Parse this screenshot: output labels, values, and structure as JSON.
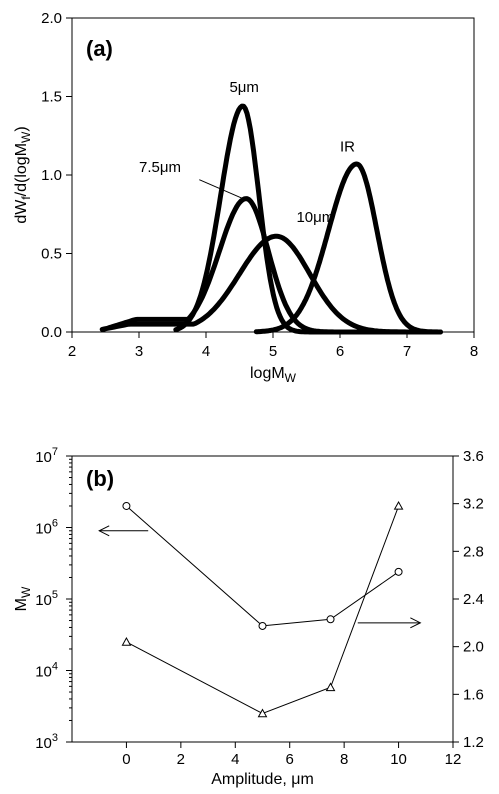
{
  "chart_data": [
    {
      "type": "line",
      "panel_label": "(a)",
      "xlabel": "logM",
      "xlabel_sub": "W",
      "ylabel": "dW",
      "ylabel_sub": "f",
      "ylabel_tail": "/d(logM",
      "ylabel_sub2": "W",
      "ylabel_close": ")",
      "xlim": [
        2,
        8
      ],
      "ylim": [
        0,
        2.0
      ],
      "xticks": [
        2,
        3,
        4,
        5,
        6,
        7,
        8
      ],
      "xtick_labels": [
        "2",
        "3",
        "4",
        "5",
        "6",
        "7",
        "8"
      ],
      "yticks": [
        0,
        0.5,
        1.0,
        1.5,
        2.0
      ],
      "ytick_labels": [
        "0.0",
        "0.5",
        "1.0",
        "1.5",
        "2.0"
      ],
      "series": [
        {
          "name": "5μm",
          "peak_x": 4.55,
          "peak_y": 1.44,
          "start_x": 3.55,
          "end_x": 7.5,
          "sl": 0.33,
          "sr": 0.24,
          "tail": 0.0
        },
        {
          "name": "7.5μm",
          "peak_x": 4.6,
          "peak_y": 0.85,
          "start_x": 2.55,
          "end_x": 7.4,
          "sl": 0.4,
          "sr": 0.33,
          "tail": 0.08
        },
        {
          "name": "10μm",
          "peak_x": 5.05,
          "peak_y": 0.61,
          "start_x": 2.45,
          "end_x": 7.3,
          "sl": 0.55,
          "sr": 0.5,
          "tail": 0.05
        },
        {
          "name": "IR",
          "peak_x": 6.25,
          "peak_y": 1.07,
          "start_x": 4.75,
          "end_x": 7.5,
          "sl": 0.42,
          "sr": 0.3,
          "tail": 0.0
        }
      ],
      "annotations": [
        {
          "text": "5μm",
          "x": 4.35,
          "y": 1.53
        },
        {
          "text": "7.5μm",
          "x": 3.0,
          "y": 1.02
        },
        {
          "text": "10μm",
          "x": 5.35,
          "y": 0.7
        },
        {
          "text": "IR",
          "x": 6.0,
          "y": 1.15
        }
      ]
    },
    {
      "type": "line",
      "panel_label": "(b)",
      "xlabel": "Amplitude, μm",
      "ylabel": "M",
      "ylabel_sub": "W",
      "xlim": [
        -2,
        12
      ],
      "xticks": [
        0,
        2,
        4,
        6,
        8,
        10,
        12
      ],
      "xtick_labels": [
        "0",
        "2",
        "4",
        "6",
        "8",
        "10",
        "12"
      ],
      "ylim_left": [
        1000,
        10000000
      ],
      "yscale_left": "log",
      "yticks_left_exponents": [
        3,
        4,
        5,
        6,
        7
      ],
      "ytick_base": "10",
      "ylim_right": [
        1.2,
        3.6
      ],
      "yticks_right": [
        1.2,
        1.6,
        2.0,
        2.4,
        2.8,
        3.2,
        3.6
      ],
      "ytick_right_labels": [
        "1.2",
        "1.6",
        "2.0",
        "2.4",
        "2.8",
        "3.2",
        "3.6"
      ],
      "series": [
        {
          "marker": "circle",
          "axis": "left",
          "x": [
            0,
            5,
            7.5,
            10
          ],
          "y": [
            2000000,
            42000,
            52000,
            240000
          ]
        },
        {
          "marker": "triangle",
          "axis": "left",
          "x": [
            0,
            5,
            7.5,
            10
          ],
          "y": [
            25000,
            2500,
            5800,
            2000000
          ]
        }
      ],
      "arrows": [
        {
          "direction": "left",
          "axis": "left"
        },
        {
          "direction": "right",
          "axis": "right"
        }
      ]
    }
  ]
}
